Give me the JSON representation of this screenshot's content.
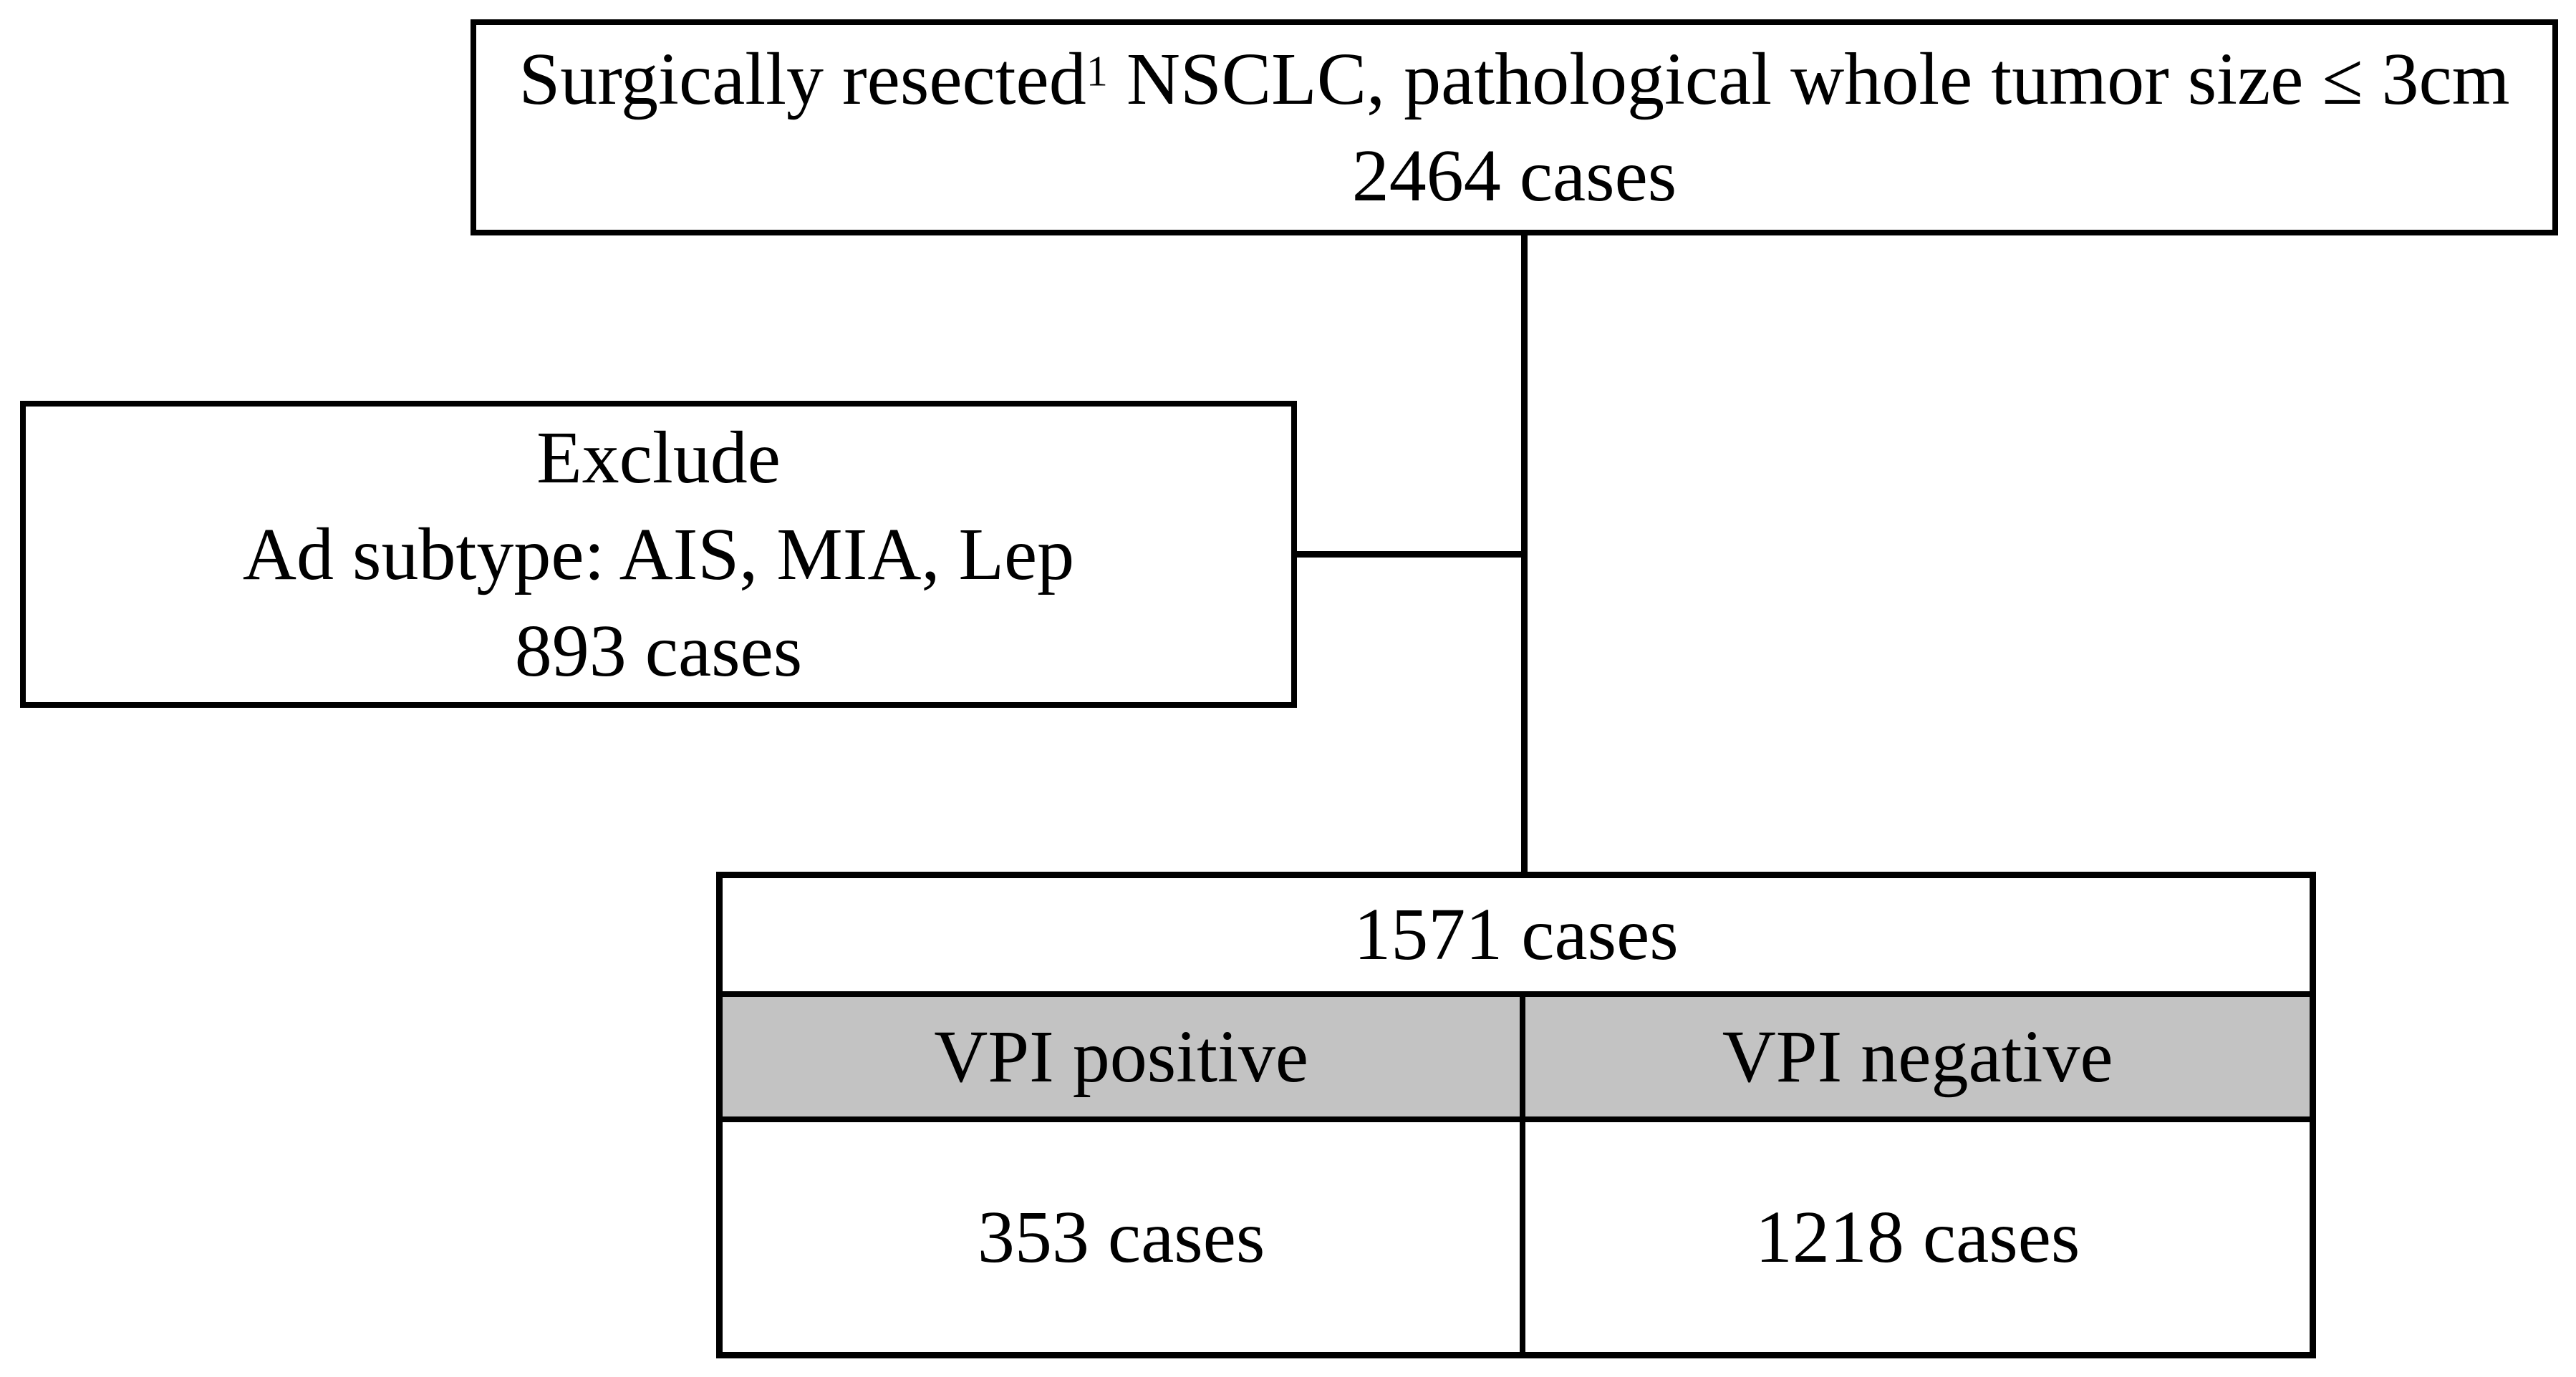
{
  "colors": {
    "border": "#000000",
    "background": "#ffffff",
    "header_fill": "#c3c3c3"
  },
  "top_box": {
    "line1_part1": "Surgically resected",
    "line1_sup": "1",
    "line1_part2": " NSCLC, pathological whole tumor size ≤ 3cm",
    "line2": "2464 cases"
  },
  "exclude_box": {
    "line1": "Exclude",
    "line2": "Ad subtype: AIS, MIA, Lep",
    "line3": "893 cases"
  },
  "result_table": {
    "total": "1571 cases",
    "columns": [
      {
        "header": "VPI positive",
        "value": "353 cases"
      },
      {
        "header": "VPI negative",
        "value": "1218 cases"
      }
    ]
  }
}
